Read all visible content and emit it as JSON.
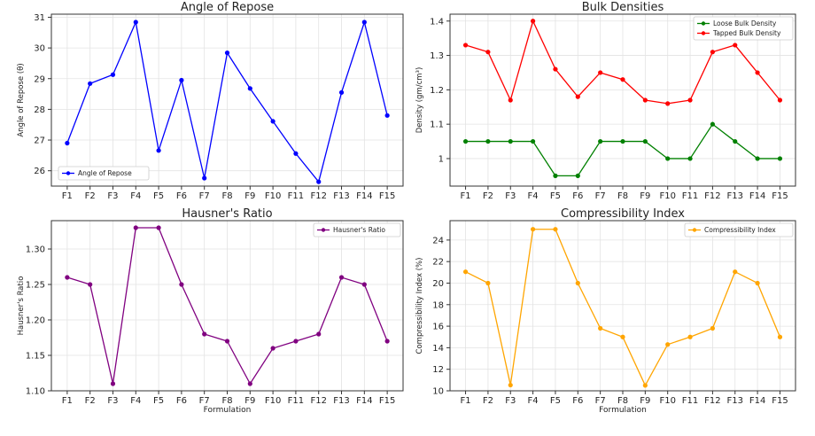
{
  "chart_data": [
    {
      "type": "line",
      "title": "Angle of Repose",
      "xlabel": "",
      "ylabel": "Angle of Repose (θ)",
      "categories": [
        "F1",
        "F2",
        "F3",
        "F4",
        "F5",
        "F6",
        "F7",
        "F8",
        "F9",
        "F10",
        "F11",
        "F12",
        "F13",
        "F14",
        "F15"
      ],
      "ylim": [
        25.5,
        31.1
      ],
      "yticks": [
        26,
        27,
        28,
        29,
        30,
        31
      ],
      "grid": true,
      "legend": "lower-left",
      "series": [
        {
          "name": "Angle of Repose",
          "color": "#0000ff",
          "values": [
            26.9,
            28.84,
            29.13,
            30.84,
            26.66,
            28.95,
            25.76,
            29.84,
            28.68,
            27.61,
            26.56,
            25.64,
            28.55,
            30.84,
            27.8
          ]
        }
      ]
    },
    {
      "type": "line",
      "title": "Bulk Densities",
      "xlabel": "",
      "ylabel": "Density (gm/cm³)",
      "categories": [
        "F1",
        "F2",
        "F3",
        "F4",
        "F5",
        "F6",
        "F7",
        "F8",
        "F9",
        "F10",
        "F11",
        "F12",
        "F13",
        "F14",
        "F15"
      ],
      "ylim": [
        0.92,
        1.42
      ],
      "yticks": [
        1.0,
        1.1,
        1.2,
        1.3,
        1.4
      ],
      "grid": true,
      "legend": "top-right",
      "series": [
        {
          "name": "Loose Bulk Density",
          "color": "#008000",
          "values": [
            1.05,
            1.05,
            1.05,
            1.05,
            0.95,
            0.95,
            1.05,
            1.05,
            1.05,
            1.0,
            1.0,
            1.1,
            1.05,
            1.0,
            1.0
          ]
        },
        {
          "name": "Tapped Bulk Density",
          "color": "#ff0000",
          "values": [
            1.33,
            1.31,
            1.17,
            1.4,
            1.26,
            1.18,
            1.25,
            1.23,
            1.17,
            1.16,
            1.17,
            1.31,
            1.33,
            1.25,
            1.17
          ]
        }
      ]
    },
    {
      "type": "line",
      "title": "Hausner's Ratio",
      "xlabel": "Formulation",
      "ylabel": "Hausner's Ratio",
      "categories": [
        "F1",
        "F2",
        "F3",
        "F4",
        "F5",
        "F6",
        "F7",
        "F8",
        "F9",
        "F10",
        "F11",
        "F12",
        "F13",
        "F14",
        "F15"
      ],
      "ylim": [
        1.1,
        1.34
      ],
      "yticks": [
        1.1,
        1.15,
        1.2,
        1.25,
        1.3
      ],
      "ytick_labels": [
        "1.10",
        "1.15",
        "1.20",
        "1.25",
        "1.30"
      ],
      "grid": true,
      "legend": "top-right",
      "series": [
        {
          "name": "Hausner's Ratio",
          "color": "#800080",
          "values": [
            1.26,
            1.25,
            1.11,
            1.33,
            1.33,
            1.25,
            1.18,
            1.17,
            1.11,
            1.16,
            1.17,
            1.18,
            1.26,
            1.25,
            1.17
          ]
        }
      ]
    },
    {
      "type": "line",
      "title": "Compressibility Index",
      "xlabel": "Formulation",
      "ylabel": "Compressibility Index (%)",
      "categories": [
        "F1",
        "F2",
        "F3",
        "F4",
        "F5",
        "F6",
        "F7",
        "F8",
        "F9",
        "F10",
        "F11",
        "F12",
        "F13",
        "F14",
        "F15"
      ],
      "ylim": [
        10,
        25.8
      ],
      "yticks": [
        10,
        12,
        14,
        16,
        18,
        20,
        22,
        24
      ],
      "grid": true,
      "legend": "top-right",
      "series": [
        {
          "name": "Compressibility Index",
          "color": "#ffa500",
          "values": [
            21.05,
            20.0,
            10.53,
            25.0,
            25.0,
            20.0,
            15.8,
            15.0,
            10.5,
            14.3,
            15.0,
            15.8,
            21.05,
            20.0,
            15.0
          ]
        }
      ]
    }
  ]
}
